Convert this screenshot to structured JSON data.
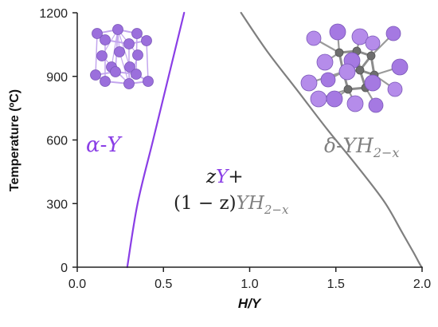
{
  "chart_data": {
    "type": "line",
    "xlabel": "H/Y",
    "ylabel": "Temperature (ºC)",
    "xlim": [
      0.0,
      2.0
    ],
    "ylim": [
      0,
      1200
    ],
    "x_ticks": [
      "0.0",
      "0.5",
      "1.0",
      "1.5",
      "2.0"
    ],
    "y_ticks": [
      "0",
      "300",
      "600",
      "900",
      "1200"
    ],
    "grid": false,
    "series": [
      {
        "color": "#8a3ee6",
        "points": [
          [
            0.29,
            0
          ],
          [
            0.35,
            300
          ],
          [
            0.44,
            600
          ],
          [
            0.53,
            900
          ],
          [
            0.62,
            1200
          ]
        ]
      },
      {
        "color": "#7f7f7f",
        "points": [
          [
            0.95,
            1200
          ],
          [
            1.1,
            1020
          ],
          [
            1.28,
            830
          ],
          [
            1.45,
            650
          ],
          [
            1.62,
            480
          ],
          [
            1.78,
            310
          ],
          [
            1.88,
            170
          ],
          [
            1.95,
            70
          ],
          [
            1.99,
            10
          ],
          [
            2.0,
            0
          ]
        ]
      }
    ],
    "annotations": {
      "alpha_phase": {
        "greek": "α",
        "dash": "-",
        "letter": "Y",
        "color": "#8a3ee6"
      },
      "delta_phase": {
        "greek": "δ",
        "dash": "-",
        "base": "Y",
        "H": "H",
        "sub": "2−x",
        "color": "#808080"
      },
      "mixture_line1": {
        "z": "z",
        "y": "Y",
        "plus": "+"
      },
      "mixture_line2": {
        "coef": "(1 − z)",
        "base": "Y",
        "H": "H",
        "sub": "2−x"
      }
    }
  }
}
